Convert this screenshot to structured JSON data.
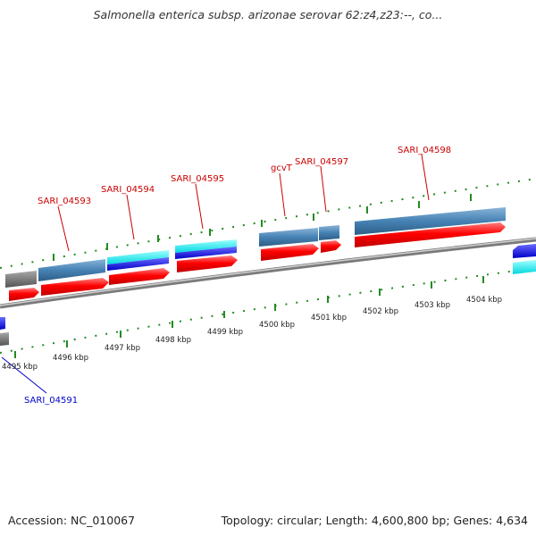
{
  "title": "Salmonella enterica subsp. arizonae serovar 62:z4,z23:--, co...",
  "footer": {
    "accession": "Accession: NC_010067",
    "summary": "Topology: circular; Length: 4,600,800 bp; Genes: 4,634"
  },
  "gene_labels": [
    {
      "id": "SARI_04593",
      "text": "SARI_04593",
      "color": "#cc0000"
    },
    {
      "id": "SARI_04594",
      "text": "SARI_04594",
      "color": "#cc0000"
    },
    {
      "id": "SARI_04595",
      "text": "SARI_04595",
      "color": "#cc0000"
    },
    {
      "id": "gcvT",
      "text": "gcvT",
      "color": "#cc0000"
    },
    {
      "id": "SARI_04597",
      "text": "SARI_04597",
      "color": "#cc0000"
    },
    {
      "id": "SARI_04598",
      "text": "SARI_04598",
      "color": "#cc0000"
    },
    {
      "id": "SARI_04591",
      "text": "SARI_04591",
      "color": "#0000cc"
    }
  ],
  "scale_labels": [
    "4495 kbp",
    "4496 kbp",
    "4497 kbp",
    "4498 kbp",
    "4499 kbp",
    "4500 kbp",
    "4501 kbp",
    "4502 kbp",
    "4503 kbp",
    "4504 kbp"
  ],
  "colors": {
    "cds": "#ff0000",
    "feature_steelblue": "#4682b4",
    "feature_cyan": "#00e5ee",
    "feature_blue": "#0000ee",
    "feature_gray": "#707070",
    "backbone": "#8c8c8c",
    "tick": "#228b22"
  }
}
